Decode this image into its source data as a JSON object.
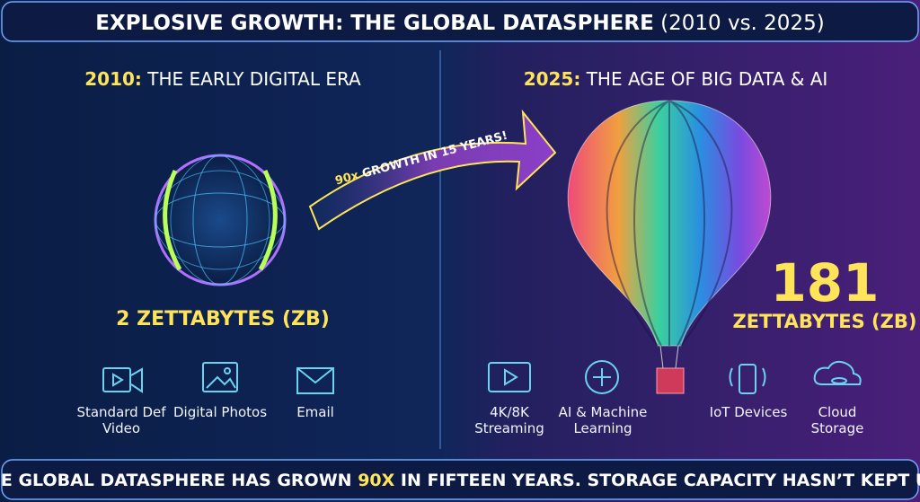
{
  "header": {
    "title": "EXPLOSIVE GROWTH: THE GLOBAL DATASPHERE",
    "subtitle": "(2010 vs. 2025)"
  },
  "left": {
    "year": "2010:",
    "heading": "THE EARLY DIGITAL ERA",
    "value": "2 ZETTABYTES (ZB)",
    "items": [
      "Standard Def Video",
      "Digital Photos",
      "Email"
    ]
  },
  "arrow": {
    "factor": "90x",
    "text": "GROWTH IN 15 YEARS!"
  },
  "right": {
    "year": "2025:",
    "heading": "THE AGE OF BIG DATA & AI",
    "value": "181",
    "unit": "ZETTABYTES (ZB)",
    "items": [
      "4K/8K Streaming",
      "AI & Machine Learning",
      "IoT Devices",
      "Cloud Storage"
    ]
  },
  "footer": {
    "before": "THE GLOBAL DATASPHERE HAS GROWN",
    "highlight": "90X",
    "after": "IN FIFTEEN YEARS. STORAGE CAPACITY HASN’T KEPT UP."
  }
}
